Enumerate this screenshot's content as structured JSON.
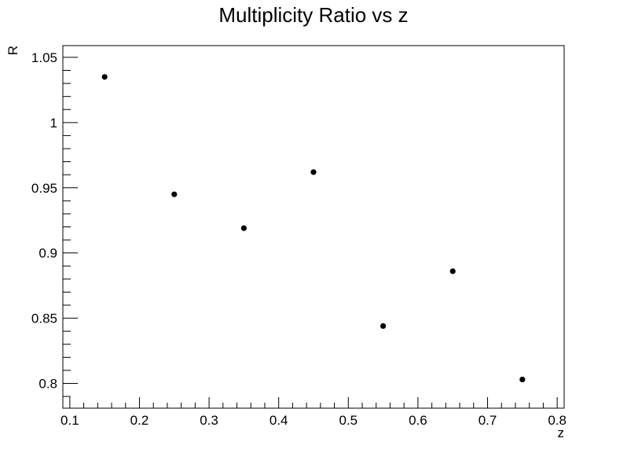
{
  "chart_data": {
    "type": "scatter",
    "title": "Multiplicity Ratio vs z",
    "xlabel": "z",
    "ylabel": "R",
    "xlim": [
      0.09,
      0.81
    ],
    "ylim": [
      0.781,
      1.059
    ],
    "grid": false,
    "x_ticks": [
      {
        "value": 0.1,
        "label": "0.1"
      },
      {
        "value": 0.2,
        "label": "0.2"
      },
      {
        "value": 0.3,
        "label": "0.3"
      },
      {
        "value": 0.4,
        "label": "0.4"
      },
      {
        "value": 0.5,
        "label": "0.5"
      },
      {
        "value": 0.6,
        "label": "0.6"
      },
      {
        "value": 0.7,
        "label": "0.7"
      },
      {
        "value": 0.8,
        "label": "0.8"
      }
    ],
    "y_ticks": [
      {
        "value": 0.8,
        "label": "0.8"
      },
      {
        "value": 0.85,
        "label": "0.85"
      },
      {
        "value": 0.9,
        "label": "0.9"
      },
      {
        "value": 0.95,
        "label": "0.95"
      },
      {
        "value": 1.0,
        "label": "1"
      },
      {
        "value": 1.05,
        "label": "1.05"
      }
    ],
    "x_minor_step": 0.02,
    "y_minor_step": 0.01,
    "series": [
      {
        "color": "#000000",
        "points": [
          {
            "x": 0.15,
            "y": 1.035
          },
          {
            "x": 0.25,
            "y": 0.945
          },
          {
            "x": 0.35,
            "y": 0.919
          },
          {
            "x": 0.45,
            "y": 0.962
          },
          {
            "x": 0.55,
            "y": 0.844
          },
          {
            "x": 0.65,
            "y": 0.886
          },
          {
            "x": 0.75,
            "y": 0.803
          }
        ]
      }
    ]
  }
}
